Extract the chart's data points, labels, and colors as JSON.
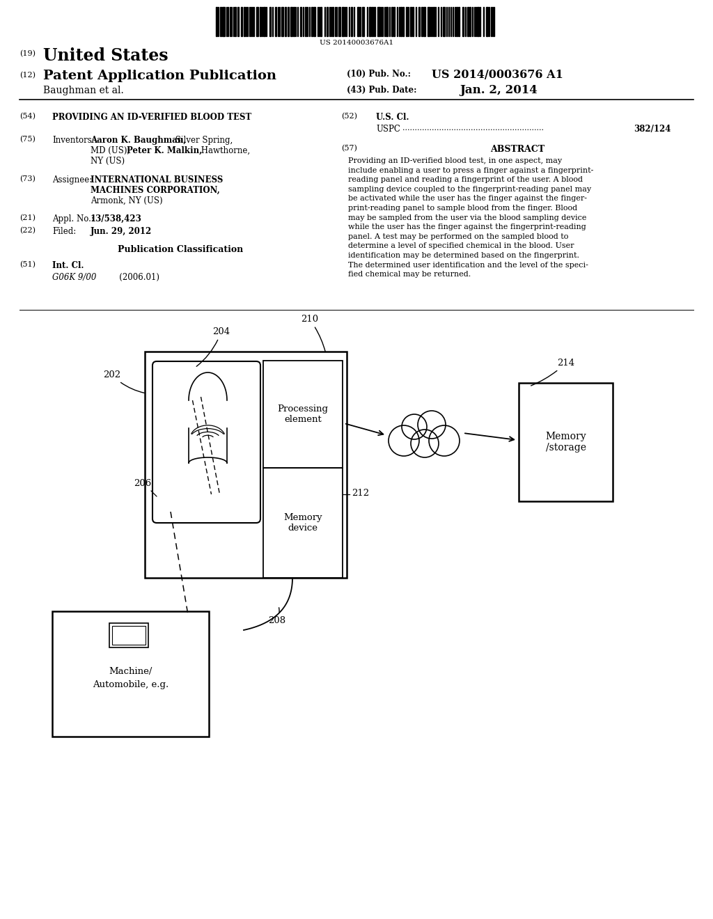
{
  "bg_color": "#ffffff",
  "barcode_text": "US 20140003676A1",
  "field54_text": "PROVIDING AN ID-VERIFIED BLOOD TEST",
  "field52_text": "U.S. Cl.",
  "uspc_value": "382/124",
  "field57_title": "ABSTRACT",
  "abstract_text": "Providing an ID-verified blood test, in one aspect, may\ninclude enabling a user to press a finger against a fingerprint-\nreading panel and reading a fingerprint of the user. A blood\nsampling device coupled to the fingerprint-reading panel may\nbe activated while the user has the finger against the finger-\nprint-reading panel to sample blood from the finger. Blood\nmay be sampled from the user via the blood sampling device\nwhile the user has the finger against the fingerprint-reading\npanel. A test may be performed on the sampled blood to\ndetermine a level of specified chemical in the blood. User\nidentification may be determined based on the fingerprint.\nThe determined user identification and the level of the speci-\nfied chemical may be returned.",
  "field73_text1": "INTERNATIONAL BUSINESS",
  "field73_text2": "MACHINES CORPORATION,",
  "field73_text3": "Armonk, NY (US)",
  "field21_value": "13/538,423",
  "field22_value": "Jun. 29, 2012",
  "field51_class": "G06K 9/00",
  "field51_year": "(2006.01)",
  "pub_no_value": "US 2014/0003676 A1",
  "pub_date_value": "Jan. 2, 2014"
}
